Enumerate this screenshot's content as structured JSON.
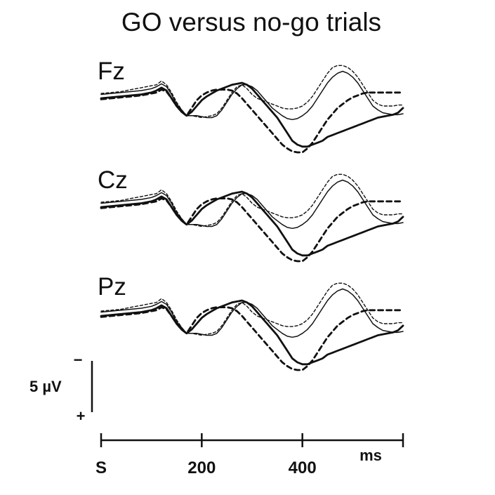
{
  "chart_data": {
    "type": "line",
    "title": "GO versus no-go trials",
    "xlabel": "ms",
    "xlim": [
      0,
      600
    ],
    "x_ticks": [
      {
        "value": 0,
        "label": "S"
      },
      {
        "value": 200,
        "label": "200"
      },
      {
        "value": 400,
        "label": "400"
      },
      {
        "value": 600,
        "label": ""
      }
    ],
    "unit_label": "ms",
    "amplitude_scale": {
      "label": "5 µV",
      "value_uv": 5,
      "negative_sign": "−",
      "positive_sign": "+",
      "negative_up": true
    },
    "x": [
      0,
      20,
      40,
      60,
      80,
      100,
      110,
      120,
      130,
      140,
      150,
      160,
      170,
      180,
      190,
      200,
      210,
      220,
      230,
      240,
      250,
      260,
      270,
      280,
      290,
      300,
      310,
      320,
      330,
      340,
      350,
      360,
      370,
      380,
      390,
      400,
      410,
      420,
      430,
      440,
      450,
      460,
      470,
      480,
      490,
      500,
      510,
      520,
      530,
      540,
      550,
      560,
      570,
      580,
      590,
      600
    ],
    "series_styles": [
      {
        "name": "thick solid",
        "dash": "",
        "width": 2.8
      },
      {
        "name": "thick dashed",
        "dash": "7 5",
        "width": 2.8
      },
      {
        "name": "thin solid",
        "dash": "",
        "width": 1.5
      },
      {
        "name": "thin dashed",
        "dash": "4 3",
        "width": 1.4
      }
    ],
    "panels": [
      {
        "electrode": "Fz",
        "series": [
          {
            "name": "thick solid",
            "values": [
              0,
              0.5,
              1,
              1.5,
              2,
              3,
              4,
              5.5,
              4,
              0,
              -4,
              -7,
              -9,
              -7,
              -4,
              -1,
              1,
              2.5,
              4,
              5,
              6,
              7,
              7.5,
              8,
              7,
              5,
              2,
              -1,
              -4,
              -7,
              -10,
              -14,
              -18,
              -22,
              -24,
              -25,
              -25,
              -24,
              -23,
              -22,
              -20,
              -19,
              -18,
              -17,
              -16,
              -15,
              -14,
              -13,
              -12,
              -11,
              -10,
              -9.5,
              -9,
              -8.5,
              -7.5,
              -5
            ]
          },
          {
            "name": "thick dashed",
            "values": [
              -0.5,
              0,
              0.5,
              1,
              1.5,
              2.5,
              3,
              4.5,
              3.5,
              0,
              -4,
              -7,
              -9,
              -5,
              -1,
              1.5,
              3,
              4,
              4.5,
              4.5,
              4.5,
              4,
              2.5,
              0,
              -3,
              -6,
              -9,
              -12,
              -15,
              -18,
              -21,
              -24,
              -26,
              -27.5,
              -28,
              -28,
              -26,
              -23,
              -19,
              -15,
              -11,
              -8,
              -5,
              -3,
              -1,
              0.5,
              1.5,
              2.5,
              3,
              3,
              3,
              3,
              3,
              3,
              3,
              3
            ]
          },
          {
            "name": "thin solid",
            "values": [
              2,
              2.5,
              3,
              3.5,
              4,
              5,
              6,
              7.5,
              6,
              2,
              -3,
              -6,
              -9,
              -9,
              -9,
              -9.5,
              -10,
              -10,
              -9,
              -6,
              -2,
              2,
              5,
              7,
              7,
              6,
              4,
              1,
              -2,
              -5,
              -7,
              -9,
              -10.5,
              -11,
              -10.5,
              -9,
              -7,
              -4,
              0,
              4,
              8,
              11,
              13,
              14,
              13,
              11,
              8,
              4,
              0,
              -4,
              -6,
              -7.5,
              -8,
              -8.5,
              -8.5,
              -8
            ]
          },
          {
            "name": "thin dashed",
            "values": [
              2.5,
              3,
              3.5,
              4.5,
              5.5,
              6.5,
              7,
              9,
              7,
              3,
              -2,
              -6,
              -9,
              -9,
              -9.5,
              -10,
              -9.5,
              -9,
              -8,
              -5,
              -1,
              3,
              6,
              7,
              5,
              2,
              0,
              -1,
              -2,
              -3,
              -4,
              -5,
              -5.5,
              -5.5,
              -5,
              -4,
              -2,
              1,
              5,
              9,
              13,
              16,
              17,
              17,
              16,
              14,
              11,
              7,
              3,
              -1,
              -3,
              -4,
              -4,
              -4,
              -3.5,
              -3.5
            ]
          }
        ]
      },
      {
        "electrode": "Cz",
        "series": [
          {
            "name": "thick solid",
            "values": [
              0,
              0.5,
              1,
              1.5,
              2,
              3,
              4,
              5.5,
              4,
              0,
              -4,
              -7,
              -9,
              -7,
              -4,
              -1,
              1,
              2.5,
              4,
              5,
              6,
              7,
              7.5,
              8,
              7,
              5,
              2,
              -1,
              -4,
              -7,
              -10,
              -14,
              -18,
              -22,
              -24,
              -25,
              -25,
              -24,
              -23,
              -22,
              -20,
              -19,
              -18,
              -17,
              -16,
              -15,
              -14,
              -13,
              -12,
              -11,
              -10,
              -9.5,
              -9,
              -8.5,
              -7.5,
              -5
            ]
          },
          {
            "name": "thick dashed",
            "values": [
              -0.5,
              0,
              0.5,
              1,
              1.5,
              2.5,
              3,
              4.5,
              3.5,
              0,
              -4,
              -7,
              -9,
              -5,
              -1,
              1.5,
              3,
              4,
              4.5,
              4.5,
              4.5,
              4,
              2.5,
              0,
              -3,
              -6,
              -9,
              -12,
              -15,
              -18,
              -21,
              -24,
              -26,
              -27.5,
              -28,
              -28,
              -26,
              -23,
              -19,
              -15,
              -11,
              -8,
              -5,
              -3,
              -1,
              0.5,
              1.5,
              2.5,
              3,
              3,
              3,
              3,
              3,
              3,
              3,
              3
            ]
          },
          {
            "name": "thin solid",
            "values": [
              2,
              2.5,
              3,
              3.5,
              4,
              5,
              6,
              7.5,
              6,
              2,
              -3,
              -6,
              -9,
              -9,
              -9,
              -9.5,
              -10,
              -10,
              -9,
              -6,
              -2,
              2,
              5,
              7,
              7,
              6,
              4,
              1,
              -2,
              -5,
              -7,
              -9,
              -10.5,
              -11,
              -10.5,
              -9,
              -7,
              -4,
              0,
              4,
              8,
              11,
              13,
              14,
              13,
              11,
              8,
              4,
              0,
              -4,
              -6,
              -7.5,
              -8,
              -8.5,
              -8.5,
              -8
            ]
          },
          {
            "name": "thin dashed",
            "values": [
              2.5,
              3,
              3.5,
              4.5,
              5.5,
              6.5,
              7,
              9,
              7,
              3,
              -2,
              -6,
              -9,
              -9,
              -9.5,
              -10,
              -9.5,
              -9,
              -8,
              -5,
              -1,
              3,
              6,
              7,
              5,
              2,
              0,
              -1,
              -2,
              -3,
              -4,
              -5,
              -5.5,
              -5.5,
              -5,
              -4,
              -2,
              1,
              5,
              9,
              13,
              16,
              17,
              17,
              16,
              14,
              11,
              7,
              3,
              -1,
              -3,
              -4,
              -4,
              -4,
              -3.5,
              -3.5
            ]
          }
        ]
      },
      {
        "electrode": "Pz",
        "series": [
          {
            "name": "thick solid",
            "values": [
              0,
              0.5,
              1,
              1.5,
              2,
              3,
              4,
              5.5,
              4,
              0,
              -4,
              -7,
              -9,
              -7,
              -4,
              -1,
              1,
              2.5,
              4,
              5,
              6,
              7,
              7.5,
              8,
              7,
              5,
              2,
              -1,
              -4,
              -7,
              -10,
              -14,
              -18,
              -22,
              -24,
              -25,
              -25,
              -24,
              -23,
              -22,
              -20,
              -19,
              -18,
              -17,
              -16,
              -15,
              -14,
              -13,
              -12,
              -11,
              -10,
              -9.5,
              -9,
              -8.5,
              -7.5,
              -5
            ]
          },
          {
            "name": "thick dashed",
            "values": [
              -0.5,
              0,
              0.5,
              1,
              1.5,
              2.5,
              3,
              4.5,
              3.5,
              0,
              -4,
              -7,
              -9,
              -5,
              -1,
              1.5,
              3,
              4,
              4.5,
              4.5,
              4.5,
              4,
              2.5,
              0,
              -3,
              -6,
              -9,
              -12,
              -15,
              -18,
              -21,
              -24,
              -26,
              -27.5,
              -28,
              -28,
              -26,
              -23,
              -19,
              -15,
              -11,
              -8,
              -5,
              -3,
              -1,
              0.5,
              1.5,
              2.5,
              3,
              3,
              3,
              3,
              3,
              3,
              3,
              3
            ]
          },
          {
            "name": "thin solid",
            "values": [
              2,
              2.5,
              3,
              3.5,
              4,
              5,
              6,
              7.5,
              6,
              2,
              -3,
              -6,
              -9,
              -9,
              -9,
              -9.5,
              -10,
              -10,
              -9,
              -6,
              -2,
              2,
              5,
              7,
              7,
              6,
              4,
              1,
              -2,
              -5,
              -7,
              -9,
              -10.5,
              -11,
              -10.5,
              -9,
              -7,
              -4,
              0,
              4,
              8,
              11,
              13,
              14,
              13,
              11,
              8,
              4,
              0,
              -4,
              -6,
              -7.5,
              -8,
              -8.5,
              -8.5,
              -8
            ]
          },
          {
            "name": "thin dashed",
            "values": [
              2.5,
              3,
              3.5,
              4.5,
              5.5,
              6.5,
              7,
              9,
              7,
              3,
              -2,
              -6,
              -9,
              -9,
              -9.5,
              -10,
              -9.5,
              -9,
              -8,
              -5,
              -1,
              3,
              6,
              7,
              5,
              2,
              0,
              -1,
              -2,
              -3,
              -4,
              -5,
              -5.5,
              -5.5,
              -5,
              -4,
              -2,
              1,
              5,
              9,
              13,
              16,
              17,
              17,
              16,
              14,
              11,
              7,
              3,
              -1,
              -3,
              -4,
              -4,
              -4,
              -3.5,
              -3.5
            ]
          }
        ]
      }
    ]
  }
}
